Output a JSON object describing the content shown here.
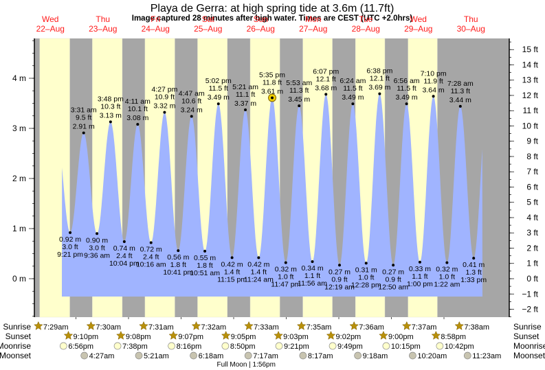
{
  "chart_data": {
    "type": "area",
    "title": "Playa de Gerra: at high  spring tide at 3.6m (11.7ft)",
    "subtitle": "Image captured 28 minutes after high water. Times are CEST (UTC +2.0hrs)",
    "left_axis": {
      "unit": "m",
      "ticks": [
        "0 m",
        "1 m",
        "2 m",
        "3 m",
        "4 m"
      ],
      "values": [
        0,
        1,
        2,
        3,
        4
      ],
      "range": [
        -0.75,
        4.8
      ]
    },
    "right_axis": {
      "unit": "ft",
      "ticks": [
        "−2 ft",
        "−1 ft",
        "0 ft",
        "1 ft",
        "2 ft",
        "3 ft",
        "4 ft",
        "5 ft",
        "6 ft",
        "7 ft",
        "8 ft",
        "9 ft",
        "10 ft",
        "11 ft",
        "12 ft",
        "13 ft",
        "14 ft",
        "15 ft"
      ],
      "values": [
        -2,
        -1,
        0,
        1,
        2,
        3,
        4,
        5,
        6,
        7,
        8,
        9,
        10,
        11,
        12,
        13,
        14,
        15
      ]
    },
    "days": [
      {
        "weekday": "Wed",
        "date": "22–Aug"
      },
      {
        "weekday": "Thu",
        "date": "23–Aug"
      },
      {
        "weekday": "Fri",
        "date": "24–Aug"
      },
      {
        "weekday": "Sat",
        "date": "25–Aug"
      },
      {
        "weekday": "Sun",
        "date": "26–Aug"
      },
      {
        "weekday": "Mon",
        "date": "27–Aug"
      },
      {
        "weekday": "Tue",
        "date": "28–Aug"
      },
      {
        "weekday": "Wed",
        "date": "29–Aug"
      },
      {
        "weekday": "Thu",
        "date": "30–Aug"
      }
    ],
    "tides": [
      {
        "type": "low",
        "day": 0,
        "hours": 21.35,
        "time": "9:21 pm",
        "m": "0.92 m",
        "ft": "3.0 ft",
        "value_m": 0.92
      },
      {
        "type": "high",
        "day": 1,
        "hours": 3.52,
        "time": "3:31 am",
        "m": "2.91 m",
        "ft": "9.5 ft",
        "value_m": 2.91
      },
      {
        "type": "low",
        "day": 1,
        "hours": 9.6,
        "time": "9:36 am",
        "m": "0.90 m",
        "ft": "3.0 ft",
        "value_m": 0.9
      },
      {
        "type": "high",
        "day": 1,
        "hours": 15.8,
        "time": "3:48 pm",
        "m": "3.13 m",
        "ft": "10.3 ft",
        "value_m": 3.13
      },
      {
        "type": "low",
        "day": 1,
        "hours": 22.07,
        "time": "10:04 pm",
        "m": "0.74 m",
        "ft": "2.4 ft",
        "value_m": 0.74
      },
      {
        "type": "high",
        "day": 2,
        "hours": 4.18,
        "time": "4:11 am",
        "m": "3.08 m",
        "ft": "10.1 ft",
        "value_m": 3.08
      },
      {
        "type": "low",
        "day": 2,
        "hours": 10.27,
        "time": "10:16 am",
        "m": "0.72 m",
        "ft": "2.4 ft",
        "value_m": 0.72
      },
      {
        "type": "high",
        "day": 2,
        "hours": 16.45,
        "time": "4:27 pm",
        "m": "3.32 m",
        "ft": "10.9 ft",
        "value_m": 3.32
      },
      {
        "type": "low",
        "day": 2,
        "hours": 22.68,
        "time": "10:41 pm",
        "m": "0.56 m",
        "ft": "1.8 ft",
        "value_m": 0.56
      },
      {
        "type": "high",
        "day": 3,
        "hours": 4.78,
        "time": "4:47 am",
        "m": "3.24 m",
        "ft": "10.6 ft",
        "value_m": 3.24
      },
      {
        "type": "low",
        "day": 3,
        "hours": 10.85,
        "time": "10:51 am",
        "m": "0.55 m",
        "ft": "1.8 ft",
        "value_m": 0.55
      },
      {
        "type": "high",
        "day": 3,
        "hours": 17.03,
        "time": "5:02 pm",
        "m": "3.49 m",
        "ft": "11.5 ft",
        "value_m": 3.49
      },
      {
        "type": "low",
        "day": 3,
        "hours": 23.25,
        "time": "11:15 pm",
        "m": "0.42 m",
        "ft": "1.4 ft",
        "value_m": 0.42
      },
      {
        "type": "high",
        "day": 4,
        "hours": 5.35,
        "time": "5:21 am",
        "m": "3.37 m",
        "ft": "11.1 ft",
        "value_m": 3.37
      },
      {
        "type": "low",
        "day": 4,
        "hours": 11.4,
        "time": "11:24 am",
        "m": "0.42 m",
        "ft": "1.4 ft",
        "value_m": 0.42
      },
      {
        "type": "high",
        "day": 4,
        "hours": 17.58,
        "time": "5:35 pm",
        "m": "3.61 m",
        "ft": "11.8 ft",
        "value_m": 3.61,
        "current": true
      },
      {
        "type": "low",
        "day": 4,
        "hours": 23.78,
        "time": "11:47 pm",
        "m": "0.32 m",
        "ft": "1.0 ft",
        "value_m": 0.32
      },
      {
        "type": "high",
        "day": 5,
        "hours": 5.88,
        "time": "5:53 am",
        "m": "3.45 m",
        "ft": "11.3 ft",
        "value_m": 3.45
      },
      {
        "type": "low",
        "day": 5,
        "hours": 11.93,
        "time": "11:56 am",
        "m": "0.34 m",
        "ft": "1.1 ft",
        "value_m": 0.34
      },
      {
        "type": "high",
        "day": 5,
        "hours": 18.12,
        "time": "6:07 pm",
        "m": "3.68 m",
        "ft": "12.1 ft",
        "value_m": 3.68
      },
      {
        "type": "low",
        "day": 6,
        "hours": 0.32,
        "time": "12:19 am",
        "m": "0.27 m",
        "ft": "0.9 ft",
        "value_m": 0.27
      },
      {
        "type": "high",
        "day": 6,
        "hours": 6.4,
        "time": "6:24 am",
        "m": "3.49 m",
        "ft": "11.5 ft",
        "value_m": 3.49
      },
      {
        "type": "low",
        "day": 6,
        "hours": 12.47,
        "time": "12:28 pm",
        "m": "0.31 m",
        "ft": "1.0 ft",
        "value_m": 0.31
      },
      {
        "type": "high",
        "day": 6,
        "hours": 18.63,
        "time": "6:38 pm",
        "m": "3.69 m",
        "ft": "12.1 ft",
        "value_m": 3.69
      },
      {
        "type": "low",
        "day": 7,
        "hours": 0.83,
        "time": "12:50 am",
        "m": "0.27 m",
        "ft": "0.9 ft",
        "value_m": 0.27
      },
      {
        "type": "high",
        "day": 7,
        "hours": 6.93,
        "time": "6:56 am",
        "m": "3.49 m",
        "ft": "11.5 ft",
        "value_m": 3.49
      },
      {
        "type": "low",
        "day": 7,
        "hours": 13.0,
        "time": "1:00 pm",
        "m": "0.33 m",
        "ft": "1.1 ft",
        "value_m": 0.33
      },
      {
        "type": "high",
        "day": 7,
        "hours": 19.17,
        "time": "7:10 pm",
        "m": "3.64 m",
        "ft": "11.9 ft",
        "value_m": 3.64
      },
      {
        "type": "low",
        "day": 8,
        "hours": 1.37,
        "time": "1:22 am",
        "m": "0.32 m",
        "ft": "1.0 ft",
        "value_m": 0.32
      },
      {
        "type": "high",
        "day": 8,
        "hours": 7.47,
        "time": "7:28 am",
        "m": "3.44 m",
        "ft": "11.3 ft",
        "value_m": 3.44
      },
      {
        "type": "low",
        "day": 8,
        "hours": 13.55,
        "time": "1:33 pm",
        "m": "0.41 m",
        "ft": "1.3 ft",
        "value_m": 0.41
      }
    ],
    "events": {
      "labels": {
        "sunrise": "Sunrise",
        "sunset": "Sunset",
        "moonrise": "Moonrise",
        "moonset": "Moonset"
      },
      "sunrise": [
        {
          "day": 0,
          "hours": 7.48,
          "time": "7:29am"
        },
        {
          "day": 1,
          "hours": 7.5,
          "time": "7:30am"
        },
        {
          "day": 2,
          "hours": 7.52,
          "time": "7:31am"
        },
        {
          "day": 3,
          "hours": 7.53,
          "time": "7:32am"
        },
        {
          "day": 4,
          "hours": 7.55,
          "time": "7:33am"
        },
        {
          "day": 5,
          "hours": 7.58,
          "time": "7:35am"
        },
        {
          "day": 6,
          "hours": 7.6,
          "time": "7:36am"
        },
        {
          "day": 7,
          "hours": 7.62,
          "time": "7:37am"
        },
        {
          "day": 8,
          "hours": 7.63,
          "time": "7:38am"
        }
      ],
      "sunset": [
        {
          "day": 0,
          "hours": 21.17,
          "time": "9:10pm"
        },
        {
          "day": 1,
          "hours": 21.13,
          "time": "9:08pm"
        },
        {
          "day": 2,
          "hours": 21.12,
          "time": "9:07pm"
        },
        {
          "day": 3,
          "hours": 21.08,
          "time": "9:05pm"
        },
        {
          "day": 4,
          "hours": 21.05,
          "time": "9:03pm"
        },
        {
          "day": 5,
          "hours": 21.03,
          "time": "9:02pm"
        },
        {
          "day": 6,
          "hours": 21.0,
          "time": "9:00pm"
        },
        {
          "day": 7,
          "hours": 20.97,
          "time": "8:58pm"
        }
      ],
      "moonrise": [
        {
          "day": 0,
          "hours": 18.93,
          "time": "6:56pm"
        },
        {
          "day": 1,
          "hours": 19.63,
          "time": "7:38pm"
        },
        {
          "day": 2,
          "hours": 20.27,
          "time": "8:16pm"
        },
        {
          "day": 3,
          "hours": 20.83,
          "time": "8:50pm"
        },
        {
          "day": 4,
          "hours": 21.35,
          "time": "9:21pm"
        },
        {
          "day": 5,
          "hours": 21.82,
          "time": "9:49pm"
        },
        {
          "day": 6,
          "hours": 22.25,
          "time": "10:15pm"
        },
        {
          "day": 7,
          "hours": 22.7,
          "time": "10:42pm"
        }
      ],
      "moonset": [
        {
          "day": 1,
          "hours": 4.45,
          "time": "4:27am"
        },
        {
          "day": 2,
          "hours": 5.35,
          "time": "5:21am"
        },
        {
          "day": 3,
          "hours": 6.3,
          "time": "6:18am"
        },
        {
          "day": 4,
          "hours": 7.28,
          "time": "7:17am"
        },
        {
          "day": 5,
          "hours": 8.28,
          "time": "8:17am"
        },
        {
          "day": 6,
          "hours": 9.3,
          "time": "9:18am"
        },
        {
          "day": 7,
          "hours": 10.33,
          "time": "10:20am"
        },
        {
          "day": 8,
          "hours": 11.38,
          "time": "11:23am"
        }
      ],
      "moon_phase": "Full Moon | 1:56pm"
    },
    "colors": {
      "day": "#ffffcc",
      "night": "#a6a6a6",
      "water": "#a0b4ff",
      "day_label": "#ff1a1a",
      "sun": "#b8900a",
      "moon_rise": "#ffffcc",
      "moon_set": "#c8c4b0",
      "current_marker": "#f0d000"
    }
  }
}
